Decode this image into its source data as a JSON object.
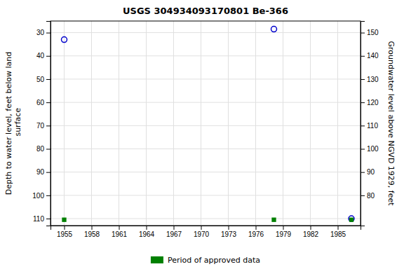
{
  "chart_data": {
    "type": "scatter",
    "title": "USGS 304934093170801 Be-366",
    "ylabel": "Depth to water level, feet below land\n surface",
    "y2label": "Groundwater level above NGVD 1929, feet",
    "x": [
      1955.0,
      1978.0,
      1986.5
    ],
    "series": [
      {
        "color": "#0000cc",
        "marker": "circle",
        "values": [
          33.0,
          28.5,
          110.0
        ]
      },
      {
        "name": "Period of approved data",
        "color": "#008000",
        "marker": "square",
        "values": [
          110.5,
          110.5,
          110.5
        ]
      }
    ],
    "xlim": [
      1953.5,
      1987.5
    ],
    "ylim": [
      113,
      25
    ],
    "y2lim": [
      67,
      155
    ],
    "xticks": [
      1955,
      1958,
      1961,
      1964,
      1967,
      1970,
      1973,
      1976,
      1979,
      1982,
      1985
    ],
    "yticks": [
      30,
      40,
      50,
      60,
      70,
      80,
      90,
      100,
      110
    ],
    "y2ticks": [
      80,
      90,
      100,
      110,
      120,
      130,
      140,
      150
    ],
    "grid": true,
    "legend": "bottom"
  }
}
